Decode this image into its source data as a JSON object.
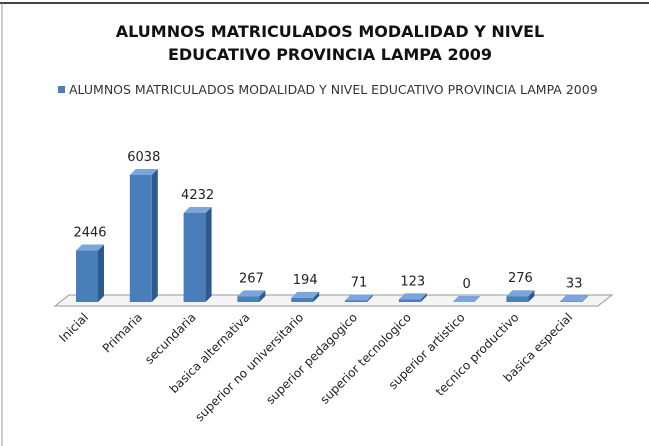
{
  "chart_data": {
    "type": "bar",
    "title": "ALUMNOS MATRICULADOS MODALIDAD Y NIVEL EDUCATIVO PROVINCIA LAMPA 2009",
    "categories": [
      "Inicial",
      "Primaria",
      "secundaria",
      "basica alternativa",
      "superior no universitario",
      "superior pedagogico",
      "superior tecnologico",
      "superior artistico",
      "tecnico productivo",
      "basica especial"
    ],
    "series": [
      {
        "name": "ALUMNOS MATRICULADOS MODALIDAD Y NIVEL EDUCATIVO PROVINCIA LAMPA 2009",
        "color": "#4a7ebb",
        "values": [
          2446,
          6038,
          4232,
          267,
          194,
          71,
          123,
          0,
          276,
          33
        ]
      }
    ],
    "legend": "top-left"
  }
}
